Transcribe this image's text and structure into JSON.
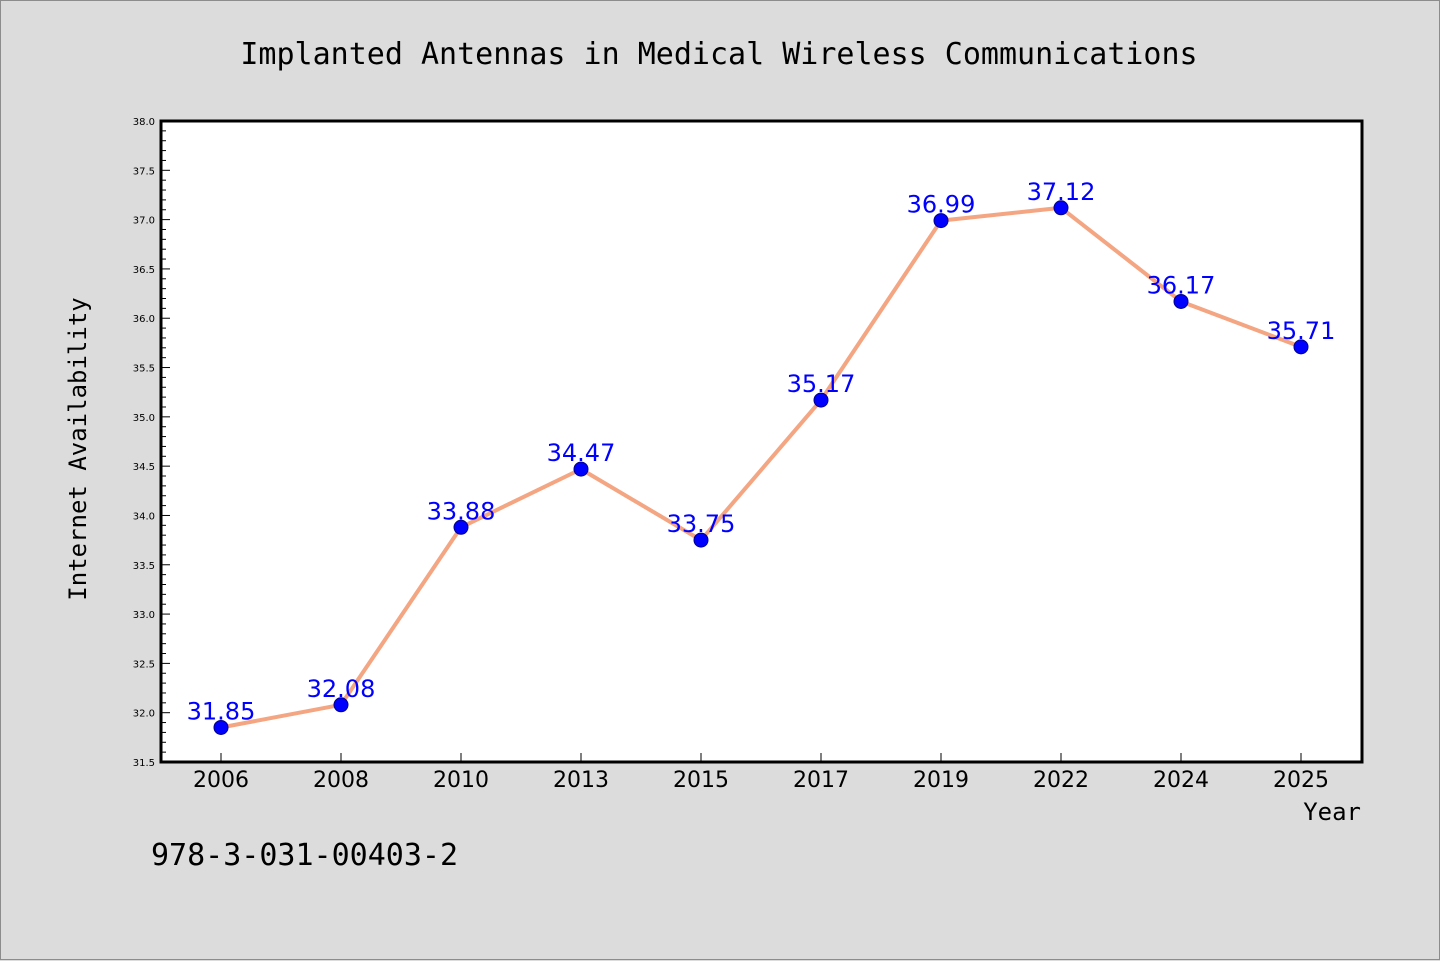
{
  "chart_data": {
    "type": "line",
    "title": "Implanted Antennas in Medical Wireless Communications",
    "xlabel": "Year",
    "ylabel": "Internet Availability",
    "categories": [
      "2006",
      "2008",
      "2010",
      "2013",
      "2015",
      "2017",
      "2019",
      "2022",
      "2024",
      "2025"
    ],
    "series": [
      {
        "values": [
          31.85,
          32.08,
          33.88,
          34.47,
          33.75,
          35.17,
          36.99,
          37.12,
          36.17,
          35.71
        ],
        "data_labels": [
          "31.85",
          "32.08",
          "33.88",
          "34.47",
          "33.75",
          "35.17",
          "36.99",
          "37.12",
          "36.17",
          "35.71"
        ],
        "line_color": "#f4a582",
        "marker_color": "#0000ff"
      }
    ],
    "ylim": [
      31.5,
      38.0
    ],
    "yticks": [
      "31.5",
      "32.0",
      "32.5",
      "33.0",
      "33.5",
      "34.0",
      "34.5",
      "35.0",
      "35.5",
      "36.0",
      "36.5",
      "37.0",
      "37.5",
      "38.0"
    ],
    "grid": false,
    "legend": "none",
    "annotation": "978-3-031-00403-2"
  },
  "colors": {
    "background": "#dcdcdc",
    "plot_background": "#ffffff",
    "line": "#f4a582",
    "marker": "#0000ff",
    "data_label": "#0000ff"
  }
}
